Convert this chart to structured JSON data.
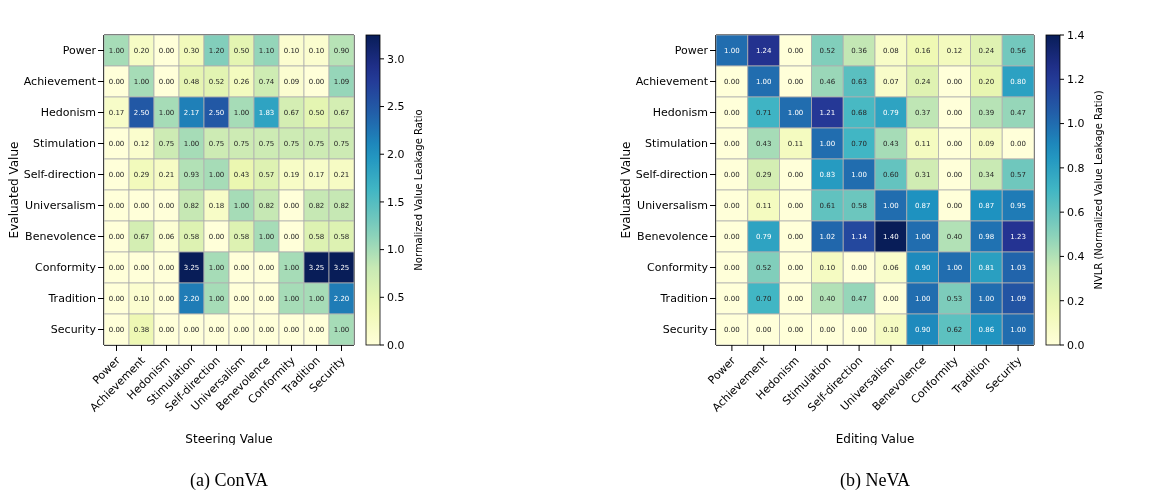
{
  "chart_data": [
    {
      "type": "heatmap",
      "xlabel": "Steering Value",
      "ylabel": "Evaluated Value",
      "clabel": "Normalized Value Leakage Ratio",
      "annotations": [
        "(a) ConVA"
      ],
      "categories": [
        "Power",
        "Achievement",
        "Hedonism",
        "Stimulation",
        "Self-direction",
        "Universalism",
        "Benevolence",
        "Conformity",
        "Tradition",
        "Security"
      ],
      "y_categories": [
        "Power",
        "Achievement",
        "Hedonism",
        "Stimulation",
        "Self-direction",
        "Universalism",
        "Benevolence",
        "Conformity",
        "Tradition",
        "Security"
      ],
      "clim": [
        0,
        3.25
      ],
      "cticks": [
        {
          "value": 0,
          "label": "0.0"
        },
        {
          "value": 0.5,
          "label": "0.5"
        },
        {
          "value": 1,
          "label": "1.0"
        },
        {
          "value": 1.5,
          "label": "1.5"
        },
        {
          "value": 2,
          "label": "2.0"
        },
        {
          "value": 2.5,
          "label": "2.5"
        },
        {
          "value": 3,
          "label": "3.0"
        }
      ],
      "cells": [
        [
          1.0,
          0.2,
          0.0,
          0.3,
          1.2,
          0.5,
          1.1,
          0.1,
          0.1,
          0.9
        ],
        [
          0.0,
          1.0,
          0.0,
          0.48,
          0.52,
          0.26,
          0.74,
          0.09,
          0.0,
          1.09
        ],
        [
          0.17,
          2.5,
          1.0,
          2.17,
          2.5,
          1.0,
          1.83,
          0.67,
          0.5,
          0.67
        ],
        [
          0.0,
          0.12,
          0.75,
          1.0,
          0.75,
          0.75,
          0.75,
          0.75,
          0.75,
          0.75
        ],
        [
          0.0,
          0.29,
          0.21,
          0.93,
          1.0,
          0.43,
          0.57,
          0.19,
          0.17,
          0.21
        ],
        [
          0.0,
          0.0,
          0.0,
          0.82,
          0.18,
          1.0,
          0.82,
          0.0,
          0.82,
          0.82
        ],
        [
          0.0,
          0.67,
          0.06,
          0.58,
          0.0,
          0.58,
          1.0,
          0.0,
          0.58,
          0.58
        ],
        [
          0.0,
          0.0,
          0.0,
          3.25,
          1.0,
          0.0,
          0.0,
          1.0,
          3.25,
          3.25
        ],
        [
          0.0,
          0.1,
          0.0,
          2.2,
          1.0,
          0.0,
          0.0,
          1.0,
          1.0,
          2.2
        ],
        [
          0.0,
          0.38,
          0.0,
          0.0,
          0.0,
          0.0,
          0.0,
          0.0,
          0.0,
          1.0
        ]
      ],
      "cell_labels": [
        [
          "1.00",
          "0.20",
          "0.00",
          "0.30",
          "1.20",
          "0.50",
          "1.10",
          "0.10",
          "0.10",
          "0.90"
        ],
        [
          "0.00",
          "1.00",
          "0.00",
          "0.48",
          "0.52",
          "0.26",
          "0.74",
          "0.09",
          "0.00",
          "1.09"
        ],
        [
          "0.17",
          "2.50",
          "1.00",
          "2.17",
          "2.50",
          "1.00",
          "1.83",
          "0.67",
          "0.50",
          "0.67"
        ],
        [
          "0.00",
          "0.12",
          "0.75",
          "1.00",
          "0.75",
          "0.75",
          "0.75",
          "0.75",
          "0.75",
          "0.75"
        ],
        [
          "0.00",
          "0.29",
          "0.21",
          "0.93",
          "1.00",
          "0.43",
          "0.57",
          "0.19",
          "0.17",
          "0.21"
        ],
        [
          "0.00",
          "0.00",
          "0.00",
          "0.82",
          "0.18",
          "1.00",
          "0.82",
          "0.00",
          "0.82",
          "0.82"
        ],
        [
          "0.00",
          "0.67",
          "0.06",
          "0.58",
          "0.00",
          "0.58",
          "1.00",
          "0.00",
          "0.58",
          "0.58"
        ],
        [
          "0.00",
          "0.00",
          "0.00",
          "3.25",
          "1.00",
          "0.00",
          "0.00",
          "1.00",
          "3.25",
          "3.25"
        ],
        [
          "0.00",
          "0.10",
          "0.00",
          "2.20",
          "1.00",
          "0.00",
          "0.00",
          "1.00",
          "1.00",
          "2.20"
        ],
        [
          "0.00",
          "0.38",
          "0.00",
          "0.00",
          "0.00",
          "0.00",
          "0.00",
          "0.00",
          "0.00",
          "1.00"
        ]
      ]
    },
    {
      "type": "heatmap",
      "xlabel": "Editing Value",
      "ylabel": "Evaluated Value",
      "clabel": "NVLR (Normalized Value Leakage Ratio)",
      "annotations": [
        "(b) NeVA"
      ],
      "categories": [
        "Power",
        "Achievement",
        "Hedonism",
        "Stimulation",
        "Self-direction",
        "Universalism",
        "Benevolence",
        "Conformity",
        "Tradition",
        "Security"
      ],
      "y_categories": [
        "Power",
        "Achievement",
        "Hedonism",
        "Stimulation",
        "Self-direction",
        "Universalism",
        "Benevolence",
        "Conformity",
        "Tradition",
        "Security"
      ],
      "clim": [
        0,
        1.4
      ],
      "cticks": [
        {
          "value": 0,
          "label": "0.0"
        },
        {
          "value": 0.2,
          "label": "0.2"
        },
        {
          "value": 0.4,
          "label": "0.4"
        },
        {
          "value": 0.6,
          "label": "0.6"
        },
        {
          "value": 0.8,
          "label": "0.8"
        },
        {
          "value": 1,
          "label": "1.0"
        },
        {
          "value": 1.2,
          "label": "1.2"
        },
        {
          "value": 1.4,
          "label": "1.4"
        }
      ],
      "cells": [
        [
          1.0,
          1.24,
          0.0,
          0.52,
          0.36,
          0.08,
          0.16,
          0.12,
          0.24,
          0.56
        ],
        [
          0.0,
          1.0,
          0.0,
          0.46,
          0.63,
          0.07,
          0.24,
          0.0,
          0.2,
          0.8
        ],
        [
          0.0,
          0.71,
          1.0,
          1.21,
          0.68,
          0.79,
          0.37,
          0.0,
          0.39,
          0.47
        ],
        [
          0.0,
          0.43,
          0.11,
          1.0,
          0.7,
          0.43,
          0.11,
          0.0,
          0.09,
          0.0
        ],
        [
          0.0,
          0.29,
          0.0,
          0.83,
          1.0,
          0.6,
          0.31,
          0.0,
          0.34,
          0.57
        ],
        [
          0.0,
          0.11,
          0.0,
          0.61,
          0.58,
          1.0,
          0.87,
          0.0,
          0.87,
          0.95
        ],
        [
          0.0,
          0.79,
          0.0,
          1.02,
          1.14,
          1.4,
          1.0,
          0.4,
          0.98,
          1.23
        ],
        [
          0.0,
          0.52,
          0.0,
          0.1,
          0.0,
          0.06,
          0.9,
          1.0,
          0.81,
          1.03
        ],
        [
          0.0,
          0.7,
          0.0,
          0.4,
          0.47,
          0.0,
          1.0,
          0.53,
          1.0,
          1.09
        ],
        [
          0.0,
          0.0,
          0.0,
          0.0,
          0.0,
          0.1,
          0.9,
          0.62,
          0.86,
          1.0
        ]
      ],
      "cell_labels": [
        [
          "1.00",
          "1.24",
          "0.00",
          "0.52",
          "0.36",
          "0.08",
          "0.16",
          "0.12",
          "0.24",
          "0.56"
        ],
        [
          "0.00",
          "1.00",
          "0.00",
          "0.46",
          "0.63",
          "0.07",
          "0.24",
          "0.00",
          "0.20",
          "0.80"
        ],
        [
          "0.00",
          "0.71",
          "1.00",
          "1.21",
          "0.68",
          "0.79",
          "0.37",
          "0.00",
          "0.39",
          "0.47"
        ],
        [
          "0.00",
          "0.43",
          "0.11",
          "1.00",
          "0.70",
          "0.43",
          "0.11",
          "0.00",
          "0.09",
          "0.00"
        ],
        [
          "0.00",
          "0.29",
          "0.00",
          "0.83",
          "1.00",
          "0.60",
          "0.31",
          "0.00",
          "0.34",
          "0.57"
        ],
        [
          "0.00",
          "0.11",
          "0.00",
          "0.61",
          "0.58",
          "1.00",
          "0.87",
          "0.00",
          "0.87",
          "0.95"
        ],
        [
          "0.00",
          "0.79",
          "0.00",
          "1.02",
          "1.14",
          "1.40",
          "1.00",
          "0.40",
          "0.98",
          "1.23"
        ],
        [
          "0.00",
          "0.52",
          "0.00",
          "0.10",
          "0.00",
          "0.06",
          "0.90",
          "1.00",
          "0.81",
          "1.03"
        ],
        [
          "0.00",
          "0.70",
          "0.00",
          "0.40",
          "0.47",
          "0.00",
          "1.00",
          "0.53",
          "1.00",
          "1.09"
        ],
        [
          "0.00",
          "0.00",
          "0.00",
          "0.00",
          "0.00",
          "0.10",
          "0.90",
          "0.62",
          "0.86",
          "1.00"
        ]
      ]
    }
  ]
}
